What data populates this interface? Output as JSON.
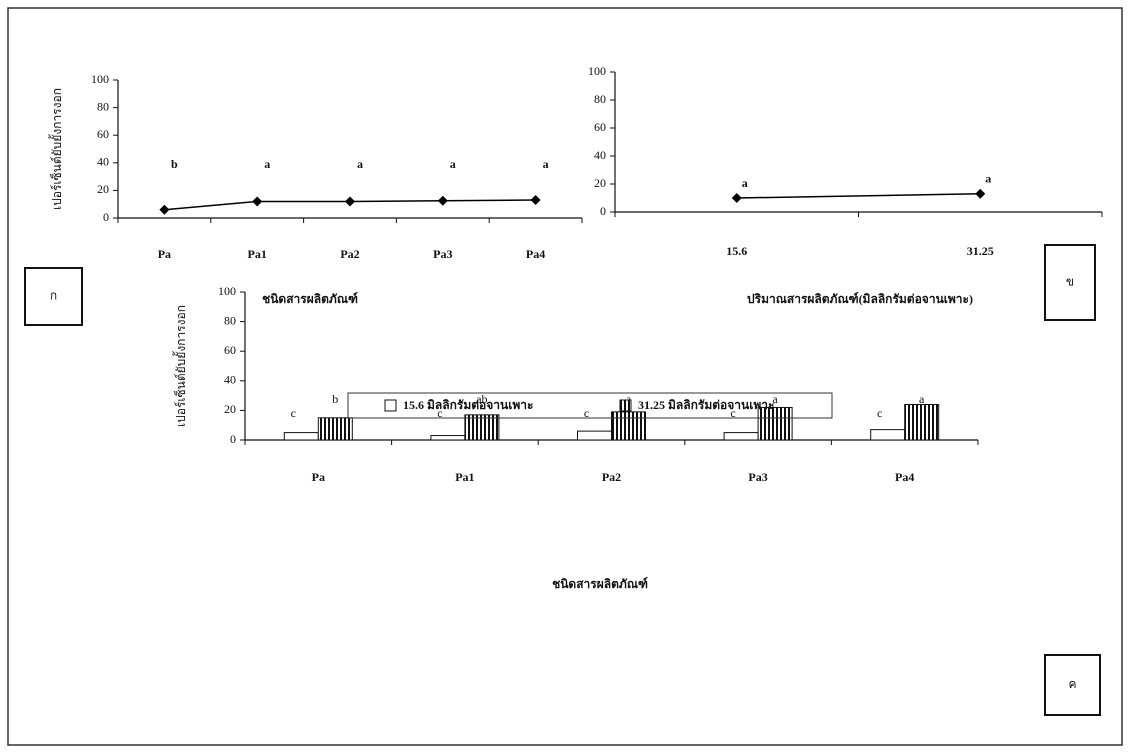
{
  "chart_data": [
    {
      "type": "line",
      "x_label": "ชนิดสารผลิตภัณฑ์",
      "y_label": "เปอร์เซ็นต์ยับยั้งการงอก",
      "panel": "ก",
      "categories": [
        "Pa",
        "Pa1",
        "Pa2",
        "Pa3",
        "Pa4"
      ],
      "values": [
        6,
        12,
        12,
        12.5,
        13
      ],
      "letters": [
        "b",
        "a",
        "a",
        "a",
        "a"
      ],
      "color": "#000000",
      "ylim": [
        0,
        100
      ],
      "yticks": [
        0,
        20,
        40,
        60,
        80,
        100
      ]
    },
    {
      "type": "line",
      "x_label": "ปริมาณสารผลิตภัณฑ์(มิลลิกรัมต่อจานเพาะ)",
      "panel": "ข",
      "categories": [
        "15.6",
        "31.25"
      ],
      "values": [
        10,
        13
      ],
      "letters": [
        "a",
        "a"
      ],
      "color": "#000000",
      "ylim": [
        0,
        100
      ],
      "yticks": [
        0,
        20,
        40,
        60,
        80,
        100
      ]
    },
    {
      "type": "bar",
      "x_label": "ชนิดสารผลิตภัณฑ์",
      "y_label": "เปอร์เซ็นต์ยับยั้งการงอก",
      "panel": "ค",
      "categories": [
        "Pa",
        "Pa1",
        "Pa2",
        "Pa3",
        "Pa4"
      ],
      "series": [
        {
          "name": "15.6 มิลลิกรัมต่อจานเพาะ",
          "color": "#ffffff",
          "hatch": false,
          "values": [
            5,
            3,
            6,
            5,
            7
          ],
          "letters": [
            "c",
            "c",
            "c",
            "c",
            "c"
          ]
        },
        {
          "name": "31.25 มิลลิกรัมต่อจานเพาะ",
          "color": "#ffffff",
          "hatch": true,
          "values": [
            15,
            17,
            19,
            22,
            24
          ],
          "letters": [
            "b",
            "ab",
            "a",
            "a",
            "a"
          ]
        }
      ],
      "ylim": [
        0,
        100
      ],
      "yticks": [
        0,
        20,
        40,
        60,
        80,
        100
      ]
    }
  ]
}
